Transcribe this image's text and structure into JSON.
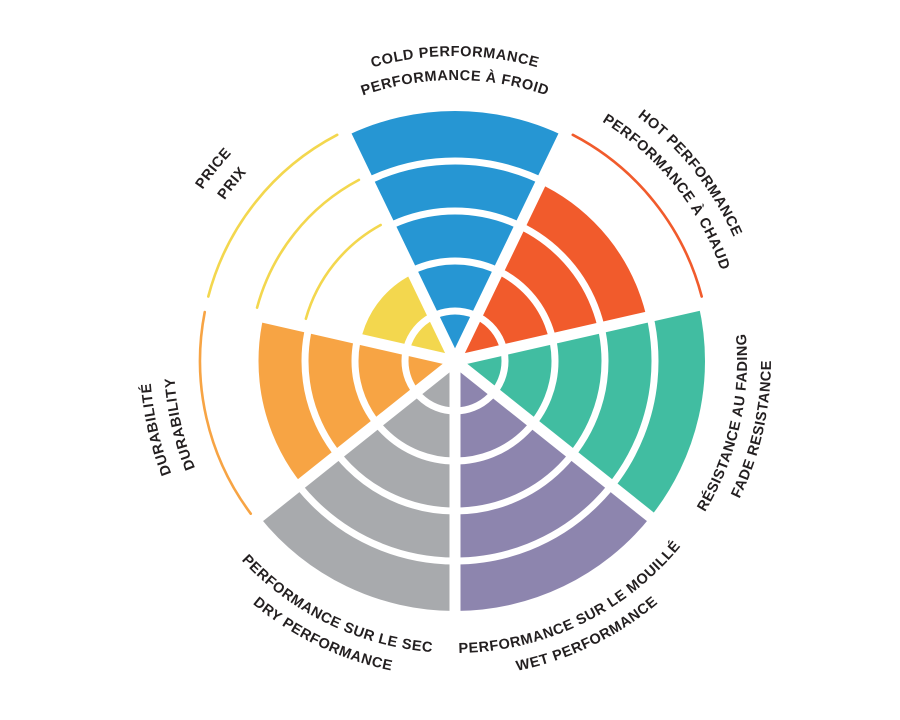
{
  "page": {
    "background_color": "#ffffff",
    "text_color": "#231f20"
  },
  "chart_data": {
    "type": "bar",
    "variant": "polar-rating-wheel",
    "title": "",
    "categories": [
      "Cold performance",
      "Hot performance",
      "Fade resistance",
      "Wet performance",
      "Dry performance",
      "Durability",
      "Price"
    ],
    "values": [
      5,
      4,
      5,
      5,
      5,
      4,
      2
    ],
    "max_level": 5,
    "ring_count": 5,
    "ylim": [
      0,
      5
    ],
    "legend": "none",
    "grid": "white ring dividers inside filled wedges; unfilled levels drawn as thin colored arcs",
    "sectors": [
      {
        "id": "cold-performance",
        "labels": [
          "COLD PERFORMANCE",
          "PERFORMANCE À FROID"
        ],
        "rating": 5,
        "color": "#2696d3",
        "label_orientation": "outward"
      },
      {
        "id": "hot-performance",
        "labels": [
          "HOT PERFORMANCE",
          "PERFORMANCE À CHAUD"
        ],
        "rating": 4,
        "color": "#f15b2c",
        "label_orientation": "outward"
      },
      {
        "id": "fade-resistance",
        "labels": [
          "RÉSISTANCE AU FADING",
          "FADE RESISTANCE"
        ],
        "rating": 5,
        "color": "#41bda1",
        "label_orientation": "inward"
      },
      {
        "id": "wet-performance",
        "labels": [
          "PERFORMANCE SUR LE MOUILLÉ",
          "WET PERFORMANCE"
        ],
        "rating": 5,
        "color": "#8d85ae",
        "label_orientation": "inward"
      },
      {
        "id": "dry-performance",
        "labels": [
          "PERFORMANCE SUR LE SEC",
          "DRY PERFORMANCE"
        ],
        "rating": 5,
        "color": "#a8aaad",
        "label_orientation": "inward"
      },
      {
        "id": "durability",
        "labels": [
          "DURABILITÉ",
          "DURABILITY"
        ],
        "rating": 4,
        "color": "#f7a444",
        "label_orientation": "outward"
      },
      {
        "id": "price",
        "labels": [
          "PRICE",
          "PRIX"
        ],
        "rating": 2,
        "color": "#f3d74e",
        "label_orientation": "outward"
      }
    ]
  }
}
